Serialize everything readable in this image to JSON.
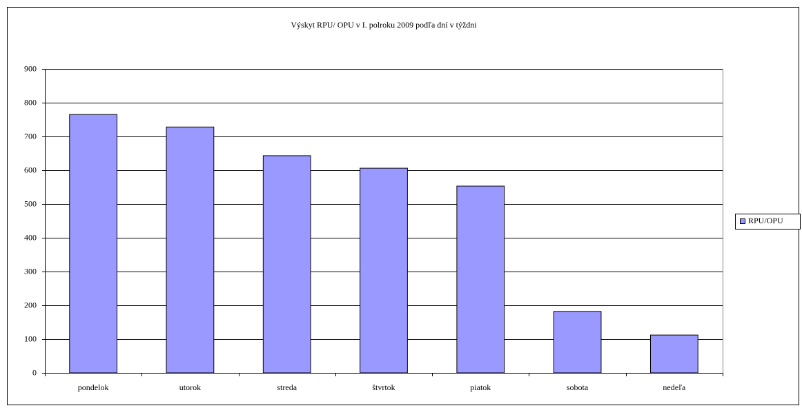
{
  "chart_data": {
    "type": "bar",
    "title": "Výskyt RPU/ OPU v I. polroku 2009 podľa dní v týždni",
    "categories": [
      "pondelok",
      "utorok",
      "streda",
      "štvrtok",
      "piatok",
      "sobota",
      "nedeľa"
    ],
    "series": [
      {
        "name": "RPU/OPU",
        "color": "#9999ff",
        "values": [
          765,
          728,
          643,
          606,
          553,
          182,
          112
        ]
      }
    ],
    "ylim": [
      0,
      900
    ],
    "yticks": [
      0,
      100,
      200,
      300,
      400,
      500,
      600,
      700,
      800,
      900
    ],
    "grid": true,
    "legend": "right"
  }
}
